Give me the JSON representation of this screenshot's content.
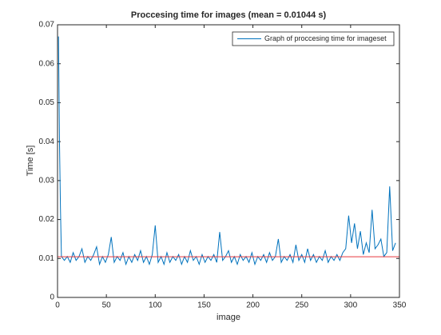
{
  "chart_data": {
    "type": "line",
    "title": "Proccesing time for images (mean = 0.01044 s)",
    "xlabel": "image",
    "ylabel": "Time [s]",
    "x": [
      1,
      2,
      3,
      4,
      7,
      10,
      13,
      16,
      19,
      22,
      25,
      28,
      31,
      34,
      37,
      40,
      43,
      46,
      49,
      52,
      55,
      58,
      61,
      64,
      67,
      70,
      73,
      76,
      79,
      82,
      85,
      88,
      91,
      94,
      97,
      100,
      103,
      106,
      109,
      112,
      115,
      118,
      121,
      124,
      127,
      130,
      133,
      136,
      139,
      142,
      145,
      148,
      151,
      154,
      157,
      160,
      163,
      166,
      169,
      172,
      175,
      178,
      181,
      184,
      187,
      190,
      193,
      196,
      199,
      202,
      205,
      208,
      211,
      214,
      217,
      220,
      223,
      226,
      229,
      232,
      235,
      238,
      241,
      244,
      247,
      250,
      253,
      256,
      259,
      262,
      265,
      268,
      271,
      274,
      277,
      280,
      283,
      286,
      289,
      292,
      295,
      298,
      301,
      304,
      307,
      310,
      313,
      316,
      319,
      322,
      325,
      328,
      331,
      334,
      337,
      340,
      343,
      346
    ],
    "series": [
      {
        "name": "Graph of proccesing time for imageset",
        "color": "#0072bd",
        "values": [
          0.067,
          0.04,
          0.023,
          0.0105,
          0.0095,
          0.0105,
          0.009,
          0.0115,
          0.0095,
          0.0105,
          0.0125,
          0.009,
          0.0105,
          0.0095,
          0.011,
          0.013,
          0.0085,
          0.0105,
          0.009,
          0.011,
          0.0155,
          0.009,
          0.0105,
          0.0095,
          0.0115,
          0.0085,
          0.0105,
          0.009,
          0.011,
          0.0095,
          0.012,
          0.009,
          0.0105,
          0.0085,
          0.011,
          0.0185,
          0.009,
          0.0105,
          0.0085,
          0.0115,
          0.009,
          0.0105,
          0.0095,
          0.011,
          0.0085,
          0.0105,
          0.009,
          0.012,
          0.0095,
          0.0105,
          0.0085,
          0.011,
          0.009,
          0.0105,
          0.0095,
          0.011,
          0.009,
          0.0168,
          0.0095,
          0.0105,
          0.012,
          0.009,
          0.0105,
          0.0085,
          0.011,
          0.0095,
          0.0105,
          0.009,
          0.0115,
          0.0085,
          0.0105,
          0.0095,
          0.011,
          0.009,
          0.0115,
          0.0095,
          0.0105,
          0.015,
          0.009,
          0.0105,
          0.0095,
          0.011,
          0.009,
          0.0135,
          0.0095,
          0.011,
          0.009,
          0.0125,
          0.0095,
          0.011,
          0.009,
          0.0105,
          0.0095,
          0.012,
          0.009,
          0.0105,
          0.0095,
          0.011,
          0.0095,
          0.0115,
          0.0125,
          0.021,
          0.014,
          0.019,
          0.0125,
          0.017,
          0.011,
          0.014,
          0.0115,
          0.0225,
          0.0125,
          0.0135,
          0.015,
          0.0105,
          0.0115,
          0.0285,
          0.012,
          0.014
        ]
      }
    ],
    "hline": {
      "value": 0.01044,
      "color": "#e8383d"
    },
    "xlim": [
      0,
      350
    ],
    "xticks": [
      0,
      50,
      100,
      150,
      200,
      250,
      300,
      350
    ],
    "ylim": [
      0,
      0.07
    ],
    "yticks": [
      0,
      0.01,
      0.02,
      0.03,
      0.04,
      0.05,
      0.06,
      0.07
    ],
    "legend": "upper right"
  }
}
